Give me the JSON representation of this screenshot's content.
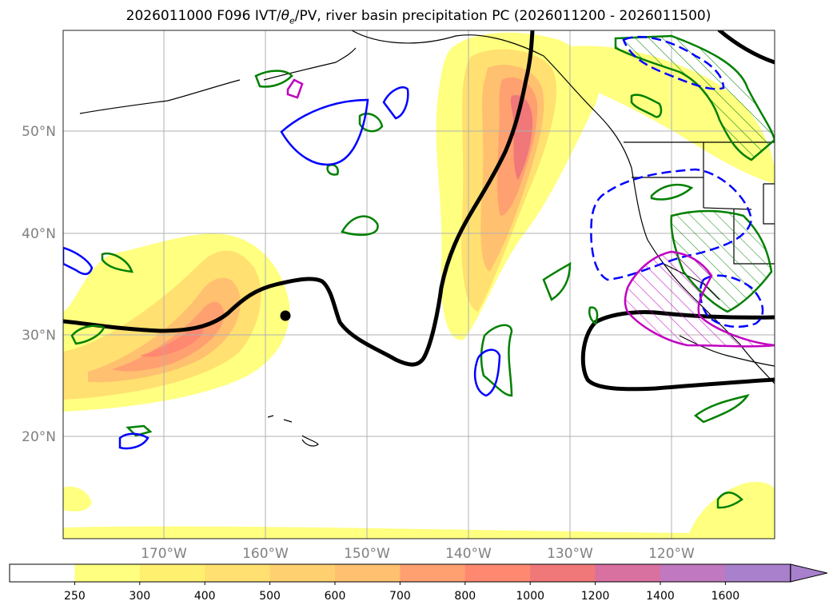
{
  "title": {
    "prefix": "2026011000 F096 IVT/",
    "theta": "θ",
    "sub": "e",
    "suffix": "/PV, river basin precipitation PC (2026011200 - 2026011500)"
  },
  "lat_labels": [
    "50°N",
    "40°N",
    "30°N",
    "20°N"
  ],
  "lon_labels": [
    "170°W",
    "160°W",
    "150°W",
    "140°W",
    "130°W",
    "120°W"
  ],
  "colorbar": {
    "levels": [
      "250",
      "300",
      "400",
      "500",
      "600",
      "700",
      "800",
      "1000",
      "1200",
      "1400",
      "1600"
    ],
    "colors": [
      "#ffffff",
      "#ffff80",
      "#fff070",
      "#ffe070",
      "#ffd070",
      "#ffc070",
      "#ffa070",
      "#ff8870",
      "#f07878",
      "#d870a0",
      "#c078c0",
      "#a880cc"
    ]
  },
  "map_colors": {
    "ivt_low": "#ffff80",
    "ivt_mid": "#ffd070",
    "ivt_high": "#ff8870",
    "theta_e_contour": "#000000",
    "pv_positive": "#008000",
    "pv_negative": "#0000ff",
    "precip_pc": "#c000c0"
  }
}
